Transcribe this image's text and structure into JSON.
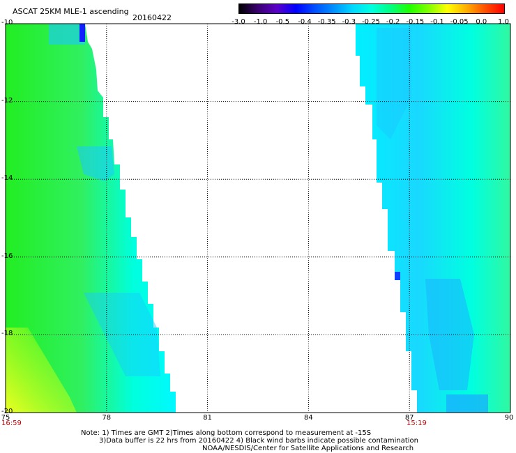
{
  "header": {
    "title": "ASCAT 25KM MLE-1 ascending",
    "date": "20160422"
  },
  "colorbar": {
    "labels": [
      "-3.0",
      "-1.0",
      "-0.5",
      "-0.4",
      "-0.35",
      "-0.3",
      "-0.25",
      "-0.2",
      "-0.15",
      "-0.1",
      "-0.05",
      "0.0",
      "1.0"
    ],
    "colors": [
      "#000000",
      "#3a0070",
      "#5a00c8",
      "#0000ff",
      "#0050ff",
      "#0090ff",
      "#00d8ff",
      "#00ffe0",
      "#00ff80",
      "#20ff00",
      "#80ff00",
      "#ffff00",
      "#ffb000",
      "#ff5000",
      "#ff0000"
    ]
  },
  "map": {
    "x_ticks": [
      "75",
      "78",
      "81",
      "84",
      "87",
      "90"
    ],
    "y_ticks": [
      "-10",
      "-12",
      "-14",
      "-16",
      "-18",
      "-20"
    ],
    "time_left": "16:59",
    "time_right": "15:19",
    "swath_colors": {
      "green": "#22ee22",
      "cyan": "#00ffee",
      "blue": "#19c8ff",
      "yellow": "#eeff22"
    }
  },
  "notes": {
    "line1": "Note: 1) Times are GMT 2)Times along bottom correspond to measurement at -15S",
    "line2": "3)Data buffer is 22 hrs from 20160422 4) Black wind barbs indicate possible contamination",
    "line3": "NOAA/NESDIS/Center for Satellite Applications and Research"
  }
}
